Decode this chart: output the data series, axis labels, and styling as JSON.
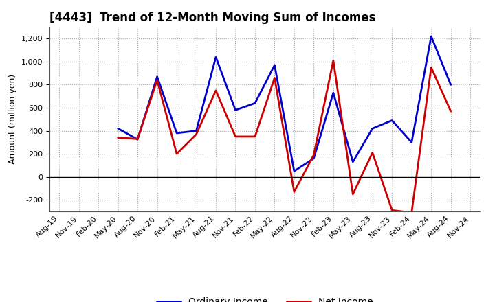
{
  "title": "[4443]  Trend of 12-Month Moving Sum of Incomes",
  "ylabel": "Amount (million yen)",
  "x_labels": [
    "Aug-19",
    "Nov-19",
    "Feb-20",
    "May-20",
    "Aug-20",
    "Nov-20",
    "Feb-21",
    "May-21",
    "Aug-21",
    "Nov-21",
    "Feb-22",
    "May-22",
    "Aug-22",
    "Nov-22",
    "Feb-23",
    "May-23",
    "Aug-23",
    "Nov-23",
    "Feb-24",
    "May-24",
    "Aug-24",
    "Nov-24"
  ],
  "ordinary_income": [
    null,
    null,
    null,
    420,
    325,
    870,
    380,
    400,
    1040,
    580,
    640,
    970,
    50,
    160,
    730,
    130,
    420,
    490,
    300,
    1220,
    800,
    null
  ],
  "net_income": [
    null,
    null,
    null,
    340,
    330,
    840,
    200,
    370,
    750,
    350,
    350,
    860,
    -130,
    190,
    1010,
    -150,
    210,
    -290,
    -310,
    950,
    570,
    null
  ],
  "ordinary_color": "#0000cc",
  "net_color": "#cc0000",
  "ylim": [
    -300,
    1300
  ],
  "yticks": [
    -200,
    0,
    200,
    400,
    600,
    800,
    1000,
    1200
  ],
  "legend_labels": [
    "Ordinary Income",
    "Net Income"
  ],
  "grid_color": "#aaaaaa",
  "line_width": 2.0,
  "title_fontsize": 12,
  "ylabel_fontsize": 9,
  "tick_fontsize": 8
}
